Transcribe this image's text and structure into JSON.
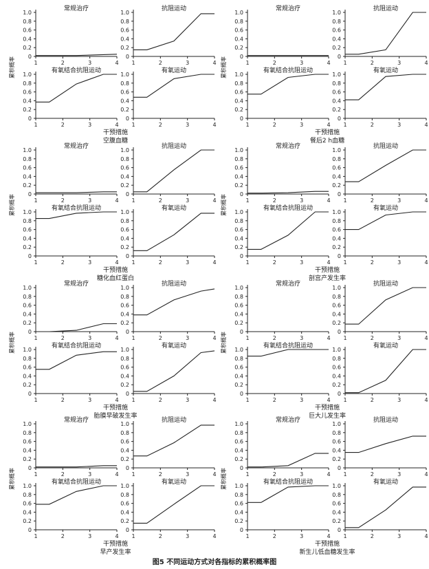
{
  "figure_caption": "图5  不同运动方式对各指标的累积概率图",
  "common": {
    "xlabel": "干预措施",
    "ylabel": "累积概率",
    "xticks": [
      "1",
      "2",
      "3",
      "4"
    ],
    "yticks": [
      "0",
      "0.2",
      "0.4",
      "0.6",
      "0.8",
      "1.0"
    ]
  },
  "chart_data": [
    {
      "type": "line",
      "title": "空腹血糖",
      "xlabel": "干预措施",
      "ylabel": "累积概率",
      "xlim": [
        1,
        4
      ],
      "ylim": [
        0,
        1
      ],
      "panels": [
        {
          "name": "常规治疗",
          "x": [
            1,
            1.5,
            2.5,
            3.5,
            4
          ],
          "y": [
            0.02,
            0.02,
            0.02,
            0.04,
            0.05
          ]
        },
        {
          "name": "抗阻运动",
          "x": [
            1,
            1.5,
            2.5,
            3.5,
            4
          ],
          "y": [
            0.15,
            0.15,
            0.35,
            0.97,
            0.97
          ]
        },
        {
          "name": "有氧结合抗阻运动",
          "x": [
            1,
            1.5,
            2.5,
            3.5,
            4
          ],
          "y": [
            0.37,
            0.37,
            0.78,
            1.0,
            1.0
          ]
        },
        {
          "name": "有氧运动",
          "x": [
            1,
            1.5,
            2.5,
            3.5,
            4
          ],
          "y": [
            0.48,
            0.48,
            0.9,
            1.0,
            1.0
          ]
        }
      ]
    },
    {
      "type": "line",
      "title": "餐后2 h血糖",
      "xlabel": "干预措施",
      "ylabel": "累积概率",
      "xlim": [
        1,
        4
      ],
      "ylim": [
        0,
        1
      ],
      "panels": [
        {
          "name": "常规治疗",
          "x": [
            1,
            1.5,
            2.5,
            3.5,
            4
          ],
          "y": [
            0.02,
            0.02,
            0.02,
            0.02,
            0.02
          ]
        },
        {
          "name": "抗阻运动",
          "x": [
            1,
            1.5,
            2.5,
            3.5,
            4
          ],
          "y": [
            0.05,
            0.05,
            0.15,
            1.0,
            1.0
          ]
        },
        {
          "name": "有氧结合抗阻运动",
          "x": [
            1,
            1.5,
            2.5,
            3.5,
            4
          ],
          "y": [
            0.55,
            0.55,
            0.93,
            1.0,
            1.0
          ]
        },
        {
          "name": "有氧运动",
          "x": [
            1,
            1.5,
            2.5,
            3.5,
            4
          ],
          "y": [
            0.42,
            0.42,
            0.95,
            1.0,
            1.0
          ]
        }
      ]
    },
    {
      "type": "line",
      "title": "糖化血红蛋白",
      "xlabel": "干预措施",
      "ylabel": "累积概率",
      "xlim": [
        1,
        4
      ],
      "ylim": [
        0,
        1
      ],
      "panels": [
        {
          "name": "常规治疗",
          "x": [
            1,
            1.5,
            2.5,
            3.5,
            4
          ],
          "y": [
            0.03,
            0.03,
            0.03,
            0.05,
            0.05
          ]
        },
        {
          "name": "抗阻运动",
          "x": [
            1,
            1.5,
            2.5,
            3.5,
            4
          ],
          "y": [
            0.05,
            0.05,
            0.55,
            1.0,
            1.0
          ]
        },
        {
          "name": "有氧结合抗阻运动",
          "x": [
            1,
            1.5,
            2.5,
            3.5,
            4
          ],
          "y": [
            0.85,
            0.85,
            0.97,
            1.0,
            1.0
          ]
        },
        {
          "name": "有氧运动",
          "x": [
            1,
            1.5,
            2.5,
            3.5,
            4
          ],
          "y": [
            0.12,
            0.12,
            0.48,
            0.97,
            0.97
          ]
        }
      ]
    },
    {
      "type": "line",
      "title": "剖宫产发生率",
      "xlabel": "干预措施",
      "ylabel": "累积概率",
      "xlim": [
        1,
        4
      ],
      "ylim": [
        0,
        1
      ],
      "panels": [
        {
          "name": "常规治疗",
          "x": [
            1,
            1.5,
            2.5,
            3.5,
            4
          ],
          "y": [
            0.02,
            0.02,
            0.03,
            0.06,
            0.06
          ]
        },
        {
          "name": "抗阻运动",
          "x": [
            1,
            1.5,
            2.5,
            3.5,
            4
          ],
          "y": [
            0.28,
            0.28,
            0.65,
            1.0,
            1.0
          ]
        },
        {
          "name": "有氧结合抗阻运动",
          "x": [
            1,
            1.5,
            2.5,
            3.5,
            4
          ],
          "y": [
            0.15,
            0.15,
            0.47,
            1.0,
            1.0
          ]
        },
        {
          "name": "有氧运动",
          "x": [
            1,
            1.5,
            2.5,
            3.5,
            4
          ],
          "y": [
            0.6,
            0.6,
            0.93,
            1.0,
            1.0
          ]
        }
      ]
    },
    {
      "type": "line",
      "title": "胎膜早破发生率",
      "xlabel": "干预措施",
      "ylabel": "累积概率",
      "xlim": [
        1,
        4
      ],
      "ylim": [
        0,
        1
      ],
      "panels": [
        {
          "name": "常规治疗",
          "x": [
            1,
            1.5,
            2.5,
            3.5,
            4
          ],
          "y": [
            0.0,
            0.0,
            0.03,
            0.18,
            0.18
          ]
        },
        {
          "name": "抗阻运动",
          "x": [
            1,
            1.5,
            2.5,
            3.5,
            4
          ],
          "y": [
            0.38,
            0.38,
            0.72,
            0.92,
            0.97
          ]
        },
        {
          "name": "有氧结合抗阻运动",
          "x": [
            1,
            1.5,
            2.5,
            3.5,
            4
          ],
          "y": [
            0.55,
            0.55,
            0.87,
            0.95,
            0.95
          ]
        },
        {
          "name": "有氧运动",
          "x": [
            1,
            1.5,
            2.5,
            3.5,
            4
          ],
          "y": [
            0.05,
            0.05,
            0.4,
            0.93,
            0.97
          ]
        }
      ]
    },
    {
      "type": "line",
      "title": "巨大儿发生率",
      "xlabel": "干预措施",
      "ylabel": "累积概率",
      "xlim": [
        1,
        4
      ],
      "ylim": [
        0,
        1
      ],
      "panels": [
        {
          "name": "常规治疗",
          "x": [
            1,
            1.5,
            2.5,
            3.5,
            4
          ],
          "y": [
            0.0,
            0.0,
            0.0,
            0.0,
            0.0
          ]
        },
        {
          "name": "抗阻运动",
          "x": [
            1,
            1.5,
            2.5,
            3.5,
            4
          ],
          "y": [
            0.17,
            0.17,
            0.72,
            1.0,
            1.0
          ]
        },
        {
          "name": "有氧结合抗阻运动",
          "x": [
            1,
            1.5,
            2.5,
            3.5,
            4
          ],
          "y": [
            0.85,
            0.85,
            1.0,
            1.0,
            1.0
          ]
        },
        {
          "name": "有氧运动",
          "x": [
            1,
            1.5,
            2.5,
            3.5,
            4
          ],
          "y": [
            0.02,
            0.02,
            0.3,
            1.0,
            1.0
          ]
        }
      ]
    },
    {
      "type": "line",
      "title": "早产发生率",
      "xlabel": "干预措施",
      "ylabel": "累积概率",
      "xlim": [
        1,
        4
      ],
      "ylim": [
        0,
        1
      ],
      "panels": [
        {
          "name": "常规治疗",
          "x": [
            1,
            1.5,
            2.5,
            3.5,
            4
          ],
          "y": [
            0.02,
            0.02,
            0.02,
            0.05,
            0.05
          ]
        },
        {
          "name": "抗阻运动",
          "x": [
            1,
            1.5,
            2.5,
            3.5,
            4
          ],
          "y": [
            0.27,
            0.27,
            0.57,
            0.97,
            0.97
          ]
        },
        {
          "name": "有氧结合抗阻运动",
          "x": [
            1,
            1.5,
            2.5,
            3.5,
            4
          ],
          "y": [
            0.58,
            0.58,
            0.87,
            1.0,
            1.0
          ]
        },
        {
          "name": "有氧运动",
          "x": [
            1,
            1.5,
            2.5,
            3.5,
            4
          ],
          "y": [
            0.15,
            0.15,
            0.58,
            1.0,
            1.0
          ]
        }
      ]
    },
    {
      "type": "line",
      "title": "新生儿低血糖发生率",
      "xlabel": "干预措施",
      "ylabel": "累积概率",
      "xlim": [
        1,
        4
      ],
      "ylim": [
        0,
        1
      ],
      "panels": [
        {
          "name": "常规治疗",
          "x": [
            1,
            1.5,
            2.5,
            3.5,
            4
          ],
          "y": [
            0.02,
            0.02,
            0.05,
            0.33,
            0.33
          ]
        },
        {
          "name": "抗阻运动",
          "x": [
            1,
            1.5,
            2.5,
            3.5,
            4
          ],
          "y": [
            0.35,
            0.35,
            0.55,
            0.72,
            0.72
          ]
        },
        {
          "name": "有氧结合抗阻运动",
          "x": [
            1,
            1.5,
            2.5,
            3.5,
            4
          ],
          "y": [
            0.62,
            0.62,
            0.97,
            1.0,
            1.0
          ]
        },
        {
          "name": "有氧运动",
          "x": [
            1,
            1.5,
            2.5,
            3.5,
            4
          ],
          "y": [
            0.05,
            0.05,
            0.45,
            0.97,
            0.97
          ]
        }
      ]
    }
  ]
}
